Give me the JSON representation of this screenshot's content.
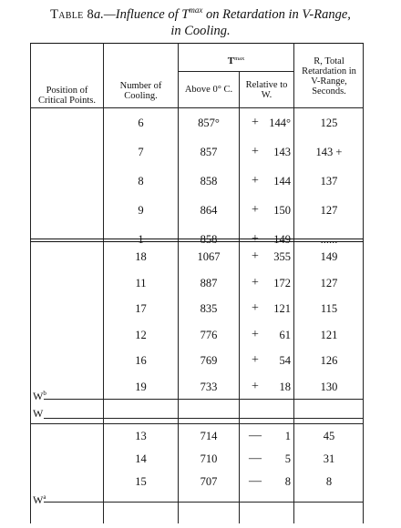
{
  "caption": {
    "lead": "Table 8",
    "lead_suffix": "a",
    "dash_part": ".—Influence of T",
    "sup": "max",
    "rest_line1": " on Retardation in V-Range,",
    "line2": "in Cooling."
  },
  "headers": {
    "position": "Position of Critical Points.",
    "number": "Number of Cooling.",
    "tmax_label": "T",
    "tmax_sup": "max",
    "above": "Above 0° C.",
    "relative": "Relative to W.",
    "retardation": "R, Total Retardation in V-Range, Seconds."
  },
  "groups": [
    {
      "rows": [
        {
          "number": "6",
          "above": "857°",
          "rel_sign": "+",
          "rel_value": "144°",
          "retardation": "125"
        },
        {
          "number": "7",
          "above": "857",
          "rel_sign": "+",
          "rel_value": "143",
          "retardation": "143 +"
        },
        {
          "number": "8",
          "above": "858",
          "rel_sign": "+",
          "rel_value": "144",
          "retardation": "137"
        },
        {
          "number": "9",
          "above": "864",
          "rel_sign": "+",
          "rel_value": "150",
          "retardation": "127"
        },
        {
          "number": "1",
          "above": "858",
          "rel_sign": "+",
          "rel_value": "149",
          "retardation": "......"
        }
      ]
    },
    {
      "rows": [
        {
          "number": "18",
          "above": "1067",
          "rel_sign": "+",
          "rel_value": "355",
          "retardation": "149"
        },
        {
          "number": "11",
          "above": "887",
          "rel_sign": "+",
          "rel_value": "172",
          "retardation": "127"
        },
        {
          "number": "17",
          "above": "835",
          "rel_sign": "+",
          "rel_value": "121",
          "retardation": "115"
        },
        {
          "number": "12",
          "above": "776",
          "rel_sign": "+",
          "rel_value": "61",
          "retardation": "121"
        },
        {
          "number": "16",
          "above": "769",
          "rel_sign": "+",
          "rel_value": "54",
          "retardation": "126"
        },
        {
          "number": "19",
          "above": "733",
          "rel_sign": "+",
          "rel_value": "18",
          "retardation": "130"
        }
      ]
    },
    {
      "rows": [
        {
          "number": "13",
          "above": "714",
          "rel_sign": "—",
          "rel_value": "1",
          "retardation": "45"
        },
        {
          "number": "14",
          "above": "710",
          "rel_sign": "—",
          "rel_value": "5",
          "retardation": "31"
        },
        {
          "number": "15",
          "above": "707",
          "rel_sign": "—",
          "rel_value": "8",
          "retardation": "8"
        }
      ]
    }
  ],
  "markers": {
    "wb": {
      "base": "W",
      "sup": "b"
    },
    "w": {
      "base": "W",
      "sup": ""
    },
    "wa": {
      "base": "W",
      "sup": "a"
    }
  }
}
